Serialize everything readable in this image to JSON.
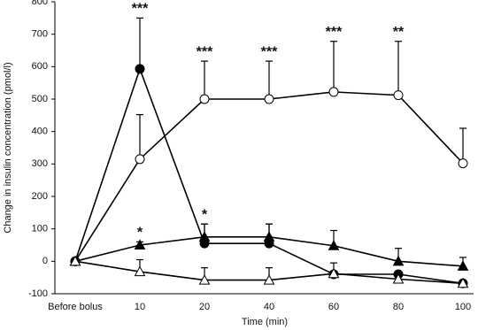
{
  "chart_data": {
    "type": "line",
    "x_label": "Time (min)",
    "y_label": "Change in insulin concentration (pmol/l)",
    "categories": [
      "Before bolus",
      "10",
      "20",
      "40",
      "60",
      "80",
      "100"
    ],
    "ylim": [
      -100,
      800
    ],
    "yticks": [
      -100,
      0,
      100,
      200,
      300,
      400,
      500,
      600,
      700,
      800
    ],
    "series": [
      {
        "color": "#000000",
        "marker": "circle",
        "filled": false,
        "values": [
          0,
          315,
          500,
          500,
          522,
          512,
          302
        ],
        "errors": [
          null,
          137,
          117,
          117,
          156,
          166,
          108
        ]
      },
      {
        "color": "#000000",
        "marker": "circle",
        "filled": true,
        "values": [
          0,
          593,
          55,
          55,
          -40,
          -40,
          -68
        ],
        "errors": [
          null,
          157,
          60,
          60,
          null,
          null,
          null
        ]
      },
      {
        "color": "#000000",
        "marker": "triangle",
        "filled": true,
        "values": [
          0,
          50,
          75,
          75,
          48,
          0,
          -15
        ],
        "errors": [
          null,
          10,
          40,
          40,
          47,
          40,
          27
        ]
      },
      {
        "color": "#000000",
        "marker": "triangle",
        "filled": false,
        "values": [
          0,
          -32,
          -58,
          -58,
          -38,
          -55,
          -68
        ],
        "errors": [
          null,
          37,
          38,
          38,
          33,
          20,
          null
        ]
      }
    ],
    "annotations": [
      {
        "text": "***",
        "category": 1,
        "series": 1
      },
      {
        "text": "***",
        "category": 2,
        "series": 0
      },
      {
        "text": "***",
        "category": 3,
        "series": 0
      },
      {
        "text": "***",
        "category": 4,
        "series": 0
      },
      {
        "text": "**",
        "category": 5,
        "series": 0
      },
      {
        "text": "*",
        "category": 1,
        "series": 2
      },
      {
        "text": "*",
        "category": 2,
        "series": 1
      }
    ]
  }
}
